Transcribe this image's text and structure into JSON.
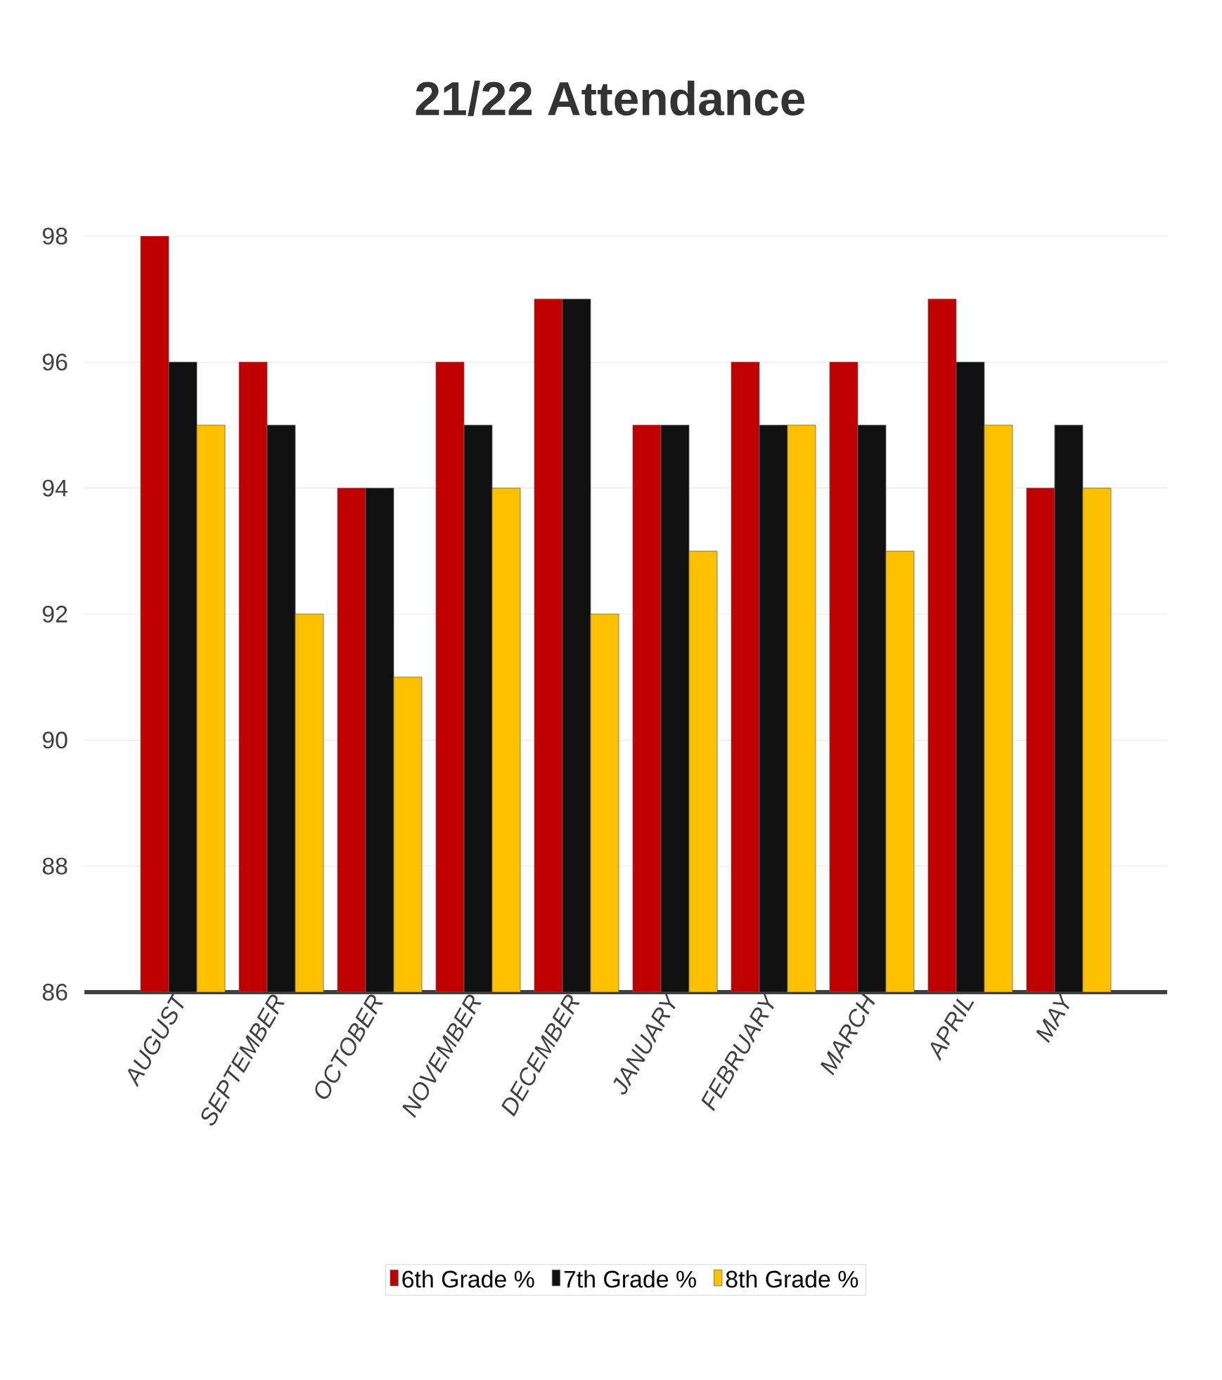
{
  "chart_data": {
    "type": "bar",
    "title": "21/22 Attendance",
    "categories": [
      "AUGUST",
      "SEPTEMBER",
      "OCTOBER",
      "NOVEMBER",
      "DECEMBER",
      "JANUARY",
      "FEBRUARY",
      "MARCH",
      "APRIL",
      "MAY"
    ],
    "series": [
      {
        "name": "6th Grade %",
        "color": "#c00000",
        "values": [
          98,
          96,
          94,
          96,
          97,
          95,
          96,
          96,
          97,
          94
        ]
      },
      {
        "name": "7th Grade %",
        "color": "#111111",
        "values": [
          96,
          95,
          94,
          95,
          97,
          95,
          95,
          95,
          96,
          95
        ]
      },
      {
        "name": "8th Grade %",
        "color": "#ffc000",
        "values": [
          95,
          92,
          91,
          94,
          92,
          93,
          95,
          93,
          95,
          94
        ]
      }
    ],
    "ylim": [
      86,
      98
    ],
    "yticks": [
      86,
      88,
      90,
      92,
      94,
      96,
      98
    ],
    "grid": "y",
    "legend": "bottom"
  }
}
